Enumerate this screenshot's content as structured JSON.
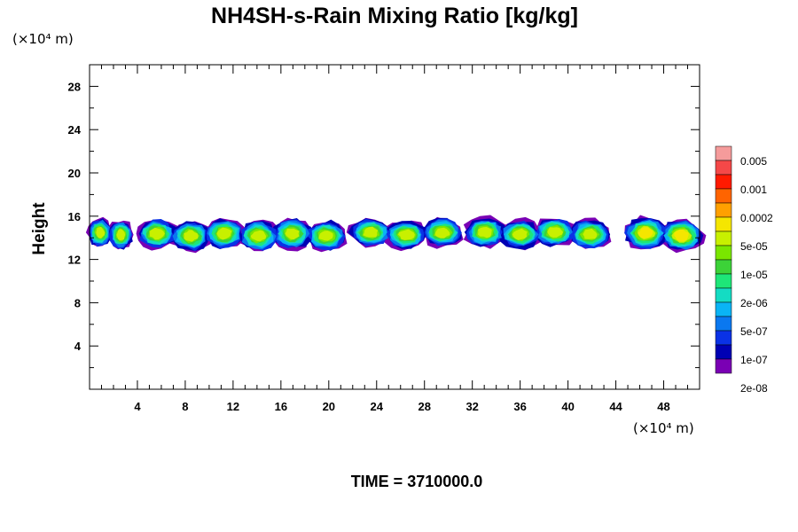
{
  "chart_data": {
    "type": "heatmap",
    "title": "NH4SH-s-Rain Mixing Ratio [kg/kg]",
    "ylabel": "Height",
    "x_unit": "(×10⁴ m)",
    "y_unit": "(×10⁴ m)",
    "footer": "TIME = 3710000.0",
    "xlim": [
      0,
      51
    ],
    "ylim": [
      0,
      30
    ],
    "x_ticks": [
      4,
      8,
      12,
      16,
      20,
      24,
      28,
      32,
      36,
      40,
      44,
      48
    ],
    "y_ticks": [
      4,
      8,
      12,
      16,
      20,
      24,
      28
    ],
    "grid": false,
    "colorbar": {
      "labels": [
        "0.005",
        "0.001",
        "0.0002",
        "5e-05",
        "1e-05",
        "2e-06",
        "5e-07",
        "1e-07",
        "2e-08"
      ],
      "colors": [
        "#f59b9b",
        "#f54848",
        "#ff1a00",
        "#ff6400",
        "#ffa000",
        "#f5e600",
        "#c8f000",
        "#7ae600",
        "#3cd238",
        "#1ee678",
        "#14dcc3",
        "#0ab4f5",
        "#0a78f0",
        "#0a32e6",
        "#0000b4",
        "#7a00b4"
      ]
    },
    "cloud_layer": {
      "height_range": [
        12.8,
        16.0
      ],
      "segments": [
        {
          "x_start": 0.0,
          "x_end": 3.5,
          "y_bottom": 13.0,
          "y_top": 15.8,
          "peak": "5e-05"
        },
        {
          "x_start": 4.2,
          "x_end": 21.2,
          "y_bottom": 12.8,
          "y_top": 15.8,
          "peak": "5e-05"
        },
        {
          "x_start": 22.0,
          "x_end": 31.0,
          "y_bottom": 13.0,
          "y_top": 15.8,
          "peak": "5e-05"
        },
        {
          "x_start": 31.6,
          "x_end": 43.3,
          "y_bottom": 13.0,
          "y_top": 15.9,
          "peak": "5e-05"
        },
        {
          "x_start": 45.0,
          "x_end": 51.0,
          "y_bottom": 12.8,
          "y_top": 15.9,
          "peak": "0.0002"
        }
      ]
    }
  }
}
